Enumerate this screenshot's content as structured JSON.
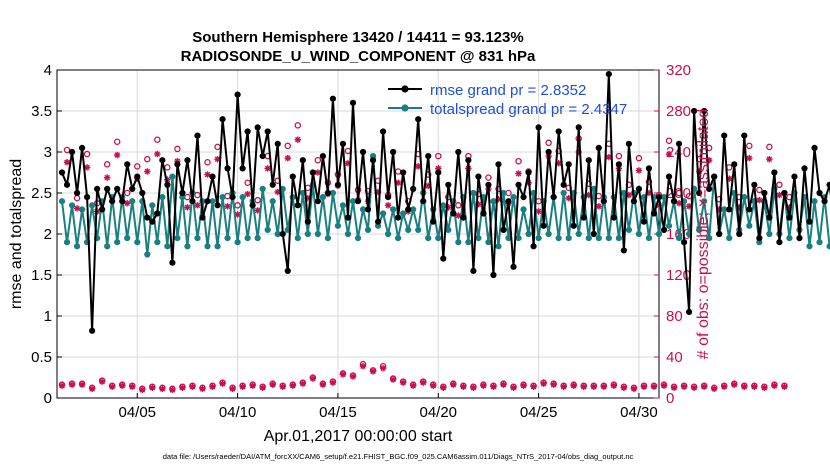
{
  "chart_data": {
    "type": "line",
    "title_line1": "Southern Hemisphere 13420 / 14411 = 93.123%",
    "title_line2": "RADIOSONDE_U_WIND_COMPONENT @ 831 hPa",
    "xlabel": "Apr.01,2017 00:00:00 start",
    "ylabel_left": "rmse and totalspread",
    "ylabel_right": "# of obs: o=possible; ×=assimilated",
    "footer": "data file: /Users/raeder/DAI/ATM_forcXX/CAM6_setup/f.e21.FHIST_BGC.f09_025.CAM6assim.011/Diags_NTrS_2017-04/obs_diag_output.nc",
    "x_range": [
      1,
      31
    ],
    "ylim_left": [
      0,
      4
    ],
    "ylim_right": [
      0,
      320
    ],
    "y_ticks_left": [
      "0",
      "0.5",
      "1",
      "1.5",
      "2",
      "2.5",
      "3",
      "3.5",
      "4"
    ],
    "y_ticks_right": [
      "0",
      "40",
      "80",
      "120",
      "160",
      "200",
      "240",
      "280",
      "320"
    ],
    "x_tick_labels": [
      "04/05",
      "04/10",
      "04/15",
      "04/20",
      "04/25",
      "04/30"
    ],
    "x_tick_values": [
      5,
      10,
      15,
      20,
      25,
      30
    ],
    "x_start": 1.25,
    "x_step": 0.25,
    "legend": {
      "position": "top-right",
      "entries": [
        "rmse grand pr = 2.8352",
        "totalspread grand pr = 2.4347"
      ]
    },
    "series": [
      {
        "name": "rmse",
        "color": "#000000",
        "axis": "left",
        "values": [
          2.75,
          2.6,
          3.0,
          2.5,
          3.05,
          2.45,
          0.82,
          2.55,
          2.3,
          2.55,
          2.4,
          2.55,
          2.4,
          2.85,
          2.55,
          2.7,
          2.5,
          2.2,
          2.15,
          2.25,
          2.9,
          2.6,
          1.65,
          2.85,
          2.5,
          2.9,
          2.4,
          3.2,
          2.2,
          2.4,
          2.7,
          2.35,
          3.4,
          2.8,
          2.45,
          3.7,
          2.8,
          3.25,
          2.35,
          3.3,
          2.95,
          3.25,
          2.6,
          3.1,
          2.0,
          1.55,
          2.7,
          2.35,
          2.9,
          2.15,
          2.75,
          2.4,
          2.95,
          2.5,
          3.65,
          2.6,
          3.1,
          2.2,
          3.6,
          2.4,
          3.0,
          2.3,
          2.9,
          2.15,
          3.25,
          2.45,
          3.0,
          2.2,
          2.75,
          2.3,
          2.55,
          3.4,
          2.4,
          2.95,
          2.15,
          2.75,
          1.7,
          2.6,
          2.25,
          3.0,
          2.2,
          2.9,
          1.55,
          2.7,
          2.25,
          2.6,
          1.5,
          2.85,
          2.05,
          2.4,
          1.6,
          2.6,
          2.45,
          2.75,
          1.85,
          3.3,
          2.1,
          3.0,
          2.45,
          3.25,
          2.6,
          2.85,
          2.1,
          3.3,
          2.2,
          2.9,
          2.0,
          3.05,
          2.4,
          3.95,
          2.2,
          2.85,
          1.8,
          3.1,
          2.4,
          2.55,
          2.15,
          2.8,
          2.25,
          2.45,
          2.05,
          2.7,
          2.4,
          3.1,
          1.9,
          1.05,
          3.5,
          2.5,
          3.5,
          2.55,
          2.7,
          2.0,
          3.2,
          2.3,
          2.85,
          2.0,
          3.2,
          2.3,
          2.6,
          1.95,
          2.5,
          2.2,
          2.75,
          1.9,
          2.5,
          2.2,
          2.7,
          1.95,
          2.8,
          2.15,
          3.05,
          2.5,
          2.4,
          2.6,
          2.1,
          3.5
        ]
      },
      {
        "name": "totalspread",
        "color": "#1a7f80",
        "axis": "left",
        "values": [
          2.4,
          1.9,
          2.35,
          1.85,
          2.3,
          1.9,
          2.35,
          1.95,
          2.4,
          1.85,
          2.45,
          1.9,
          2.45,
          1.95,
          2.4,
          1.9,
          2.4,
          1.75,
          2.35,
          1.9,
          2.45,
          1.85,
          2.7,
          1.95,
          2.45,
          1.85,
          2.5,
          1.95,
          2.4,
          1.85,
          2.4,
          1.85,
          2.45,
          1.95,
          2.5,
          1.9,
          2.45,
          1.95,
          2.4,
          1.95,
          2.55,
          2.05,
          2.4,
          2.0,
          2.55,
          2.05,
          2.45,
          1.95,
          2.5,
          2.0,
          2.6,
          2.0,
          2.45,
          1.95,
          2.5,
          2.1,
          2.35,
          2.0,
          2.4,
          1.95,
          2.3,
          2.05,
          2.95,
          2.1,
          2.25,
          2.0,
          2.3,
          1.95,
          2.25,
          2.05,
          2.3,
          2.05,
          2.5,
          1.95,
          2.3,
          1.95,
          2.35,
          2.05,
          2.4,
          1.9,
          2.45,
          1.9,
          2.5,
          1.95,
          2.45,
          1.9,
          2.4,
          1.85,
          2.5,
          1.95,
          2.45,
          1.95,
          2.3,
          2.0,
          2.5,
          1.95,
          2.4,
          2.0,
          2.45,
          1.95,
          2.5,
          1.95,
          2.5,
          2.0,
          2.45,
          1.95,
          2.55,
          1.95,
          2.45,
          1.95,
          2.45,
          1.95,
          2.5,
          2.05,
          2.5,
          2.0,
          2.45,
          1.95,
          2.45,
          2.0,
          2.45,
          2.1,
          2.4,
          1.95,
          2.4,
          2.0,
          2.55,
          2.05,
          2.4,
          1.95,
          2.7,
          2.0,
          2.3,
          1.95,
          2.5,
          2.05,
          2.45,
          2.1,
          2.4,
          1.9,
          2.4,
          2.0,
          2.55,
          2.0,
          2.5,
          1.95,
          2.5,
          2.05,
          2.45,
          1.85,
          2.4,
          1.9,
          2.45,
          1.85
        ]
      },
      {
        "name": "possible",
        "color": "#c8104f",
        "axis": "right",
        "marker": "o",
        "values": [
          13,
          242,
          14,
          195,
          14,
          238,
          10,
          190,
          17,
          228,
          12,
          250,
          13,
          200,
          12,
          226,
          9,
          233,
          11,
          252,
          10,
          225,
          9,
          243,
          11,
          196,
          12,
          198,
          10,
          230,
          12,
          245,
          15,
          197,
          10,
          188,
          12,
          210,
          13,
          193,
          11,
          236,
          14,
          212,
          12,
          246,
          13,
          266,
          15,
          205,
          20,
          232,
          14,
          210,
          16,
          218,
          24,
          241,
          22,
          203,
          33,
          202,
          27,
          212,
          31,
          198,
          19,
          221,
          16,
          192,
          13,
          238,
          16,
          218,
          13,
          236,
          11,
          196,
          14,
          188,
          12,
          236,
          11,
          199,
          13,
          215,
          12,
          204,
          14,
          200,
          11,
          231,
          13,
          221,
          12,
          192,
          15,
          249,
          14,
          241,
          12,
          205,
          13,
          253,
          12,
          209,
          12,
          197,
          12,
          248,
          13,
          236,
          11,
          208,
          10,
          234,
          12,
          211,
          12,
          198,
          13,
          251,
          11,
          200,
          12,
          197,
          11,
          233,
          12,
          244,
          10,
          194,
          12,
          225,
          14,
          196,
          12,
          246,
          12,
          203,
          11,
          245,
          13,
          208,
          12,
          196
        ]
      },
      {
        "name": "assimilated",
        "color": "#c8104f",
        "axis": "right",
        "marker": "x",
        "values": [
          12,
          230,
          13,
          185,
          13,
          225,
          9,
          182,
          16,
          215,
          11,
          237,
          12,
          190,
          11,
          214,
          8,
          221,
          10,
          238,
          9,
          213,
          8,
          231,
          10,
          186,
          11,
          188,
          9,
          218,
          11,
          233,
          14,
          187,
          9,
          179,
          11,
          199,
          12,
          183,
          10,
          224,
          13,
          201,
          11,
          234,
          12,
          252,
          14,
          195,
          19,
          220,
          13,
          199,
          15,
          207,
          23,
          229,
          21,
          193,
          31,
          192,
          26,
          201,
          29,
          188,
          18,
          210,
          15,
          182,
          12,
          226,
          15,
          207,
          12,
          224,
          10,
          186,
          13,
          178,
          11,
          224,
          10,
          189,
          12,
          204,
          11,
          194,
          13,
          190,
          10,
          219,
          12,
          210,
          11,
          182,
          14,
          236,
          13,
          229,
          11,
          195,
          12,
          240,
          11,
          198,
          11,
          187,
          11,
          235,
          12,
          224,
          10,
          198,
          9,
          222,
          11,
          200,
          11,
          188,
          12,
          238,
          10,
          190,
          11,
          187,
          10,
          221,
          11,
          232,
          9,
          184,
          11,
          214,
          13,
          186,
          11,
          234,
          11,
          193,
          10,
          233,
          12,
          198,
          11,
          186
        ]
      }
    ]
  }
}
